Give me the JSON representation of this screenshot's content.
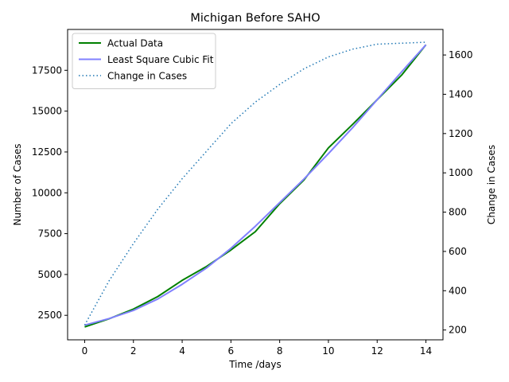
{
  "chart_data": {
    "type": "line",
    "title": "Michigan Before SAHO",
    "xlabel": "Time /days",
    "ylabel_left": "Number of Cases",
    "ylabel_right": "Change in Cases",
    "xlim": [
      -0.7,
      14.7
    ],
    "ylim_left": [
      1000,
      20000
    ],
    "ylim_right": [
      150,
      1730
    ],
    "x_ticks": [
      0,
      2,
      4,
      6,
      8,
      10,
      12,
      14
    ],
    "y_ticks_left": [
      2500,
      5000,
      7500,
      10000,
      12500,
      15000,
      17500
    ],
    "y_ticks_right": [
      200,
      400,
      600,
      800,
      1000,
      1200,
      1400,
      1600
    ],
    "grid": false,
    "legend_position": "upper-left",
    "x": [
      0,
      1,
      2,
      3,
      4,
      5,
      6,
      7,
      8,
      9,
      10,
      11,
      12,
      13,
      14
    ],
    "series": [
      {
        "name": "Actual Data",
        "axis": "left",
        "color": "#008000",
        "style": "solid",
        "values": [
          1790,
          2290,
          2880,
          3650,
          4640,
          5490,
          6500,
          7620,
          9330,
          10790,
          12750,
          14200,
          15700,
          17200,
          19060
        ]
      },
      {
        "name": "Least Square Cubic Fit",
        "axis": "left",
        "color": "#8080ff",
        "style": "solid",
        "values": [
          1900,
          2300,
          2800,
          3500,
          4400,
          5400,
          6600,
          7950,
          9400,
          10850,
          12400,
          14000,
          15700,
          17400,
          19060
        ]
      },
      {
        "name": "Change in Cases",
        "axis": "right",
        "color": "#1f77b4",
        "style": "dotted",
        "values": [
          225,
          450,
          640,
          815,
          970,
          1110,
          1250,
          1360,
          1450,
          1530,
          1590,
          1630,
          1655,
          1660,
          1665
        ]
      }
    ]
  }
}
